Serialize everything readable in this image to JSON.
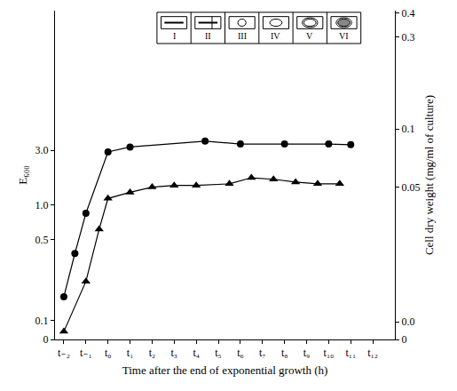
{
  "chart_data": {
    "type": "line",
    "x_label": "Time after the end of exponential growth (h)",
    "y_label": "E₆₀₀",
    "y2_label": "Cell dry weight (mg/ml of culture)",
    "annotations": [
      "I",
      "II",
      "III",
      "IV",
      "V",
      "VI"
    ],
    "log": "y",
    "grid": false,
    "xlim": [
      -2.4,
      13
    ],
    "xticks": [
      {
        "value": -2,
        "label": "t₋₂"
      },
      {
        "value": -1,
        "label": "t₋₁"
      },
      {
        "value": 0,
        "label": "t₀"
      },
      {
        "value": 1,
        "label": "t₁"
      },
      {
        "value": 2,
        "label": "t₂"
      },
      {
        "value": 3,
        "label": "t₃"
      },
      {
        "value": 4,
        "label": "t₄"
      },
      {
        "value": 5,
        "label": "t₅"
      },
      {
        "value": 6,
        "label": "t₆"
      },
      {
        "value": 7,
        "label": "t₇"
      },
      {
        "value": 8,
        "label": "t₈"
      },
      {
        "value": 9,
        "label": "t₉"
      },
      {
        "value": 10,
        "label": "t₁₀"
      },
      {
        "value": 11,
        "label": "t₁₁"
      },
      {
        "value": 12,
        "label": "t₁₂"
      }
    ],
    "ylim": [
      0.068,
      49
    ],
    "yticks": [
      {
        "value": 0.068,
        "label": "0"
      },
      0.1,
      0.5,
      {
        "value": 1,
        "label": "1.0"
      },
      {
        "value": 3,
        "label": "3.0"
      }
    ],
    "y2lim": [
      0.0081,
      0.41
    ],
    "y2ticks": [
      {
        "value": 0.0081,
        "label": "0"
      },
      {
        "value": 0.01,
        "label": "0.0"
      },
      0.05,
      0.1,
      0.3,
      0.4
    ],
    "series": [
      {
        "marker": "circle",
        "color": "#000000",
        "x": [
          -2,
          -1.5,
          -1,
          0,
          1,
          4.4,
          6,
          8,
          10,
          11
        ],
        "values": [
          0.16,
          0.38,
          0.85,
          2.9,
          3.2,
          3.6,
          3.4,
          3.4,
          3.4,
          3.35
        ]
      },
      {
        "marker": "triangle-up",
        "color": "#000000",
        "axis": "y2",
        "x": [
          -2,
          -1,
          -0.4,
          0,
          1,
          2,
          3,
          4,
          5.5,
          6.5,
          7.5,
          8.5,
          9.5,
          10.5
        ],
        "values": [
          0.0089,
          0.0162,
          0.0302,
          0.0436,
          0.0469,
          0.0499,
          0.0509,
          0.0509,
          0.0519,
          0.0558,
          0.0548,
          0.053,
          0.0519,
          0.0519
        ]
      }
    ]
  }
}
